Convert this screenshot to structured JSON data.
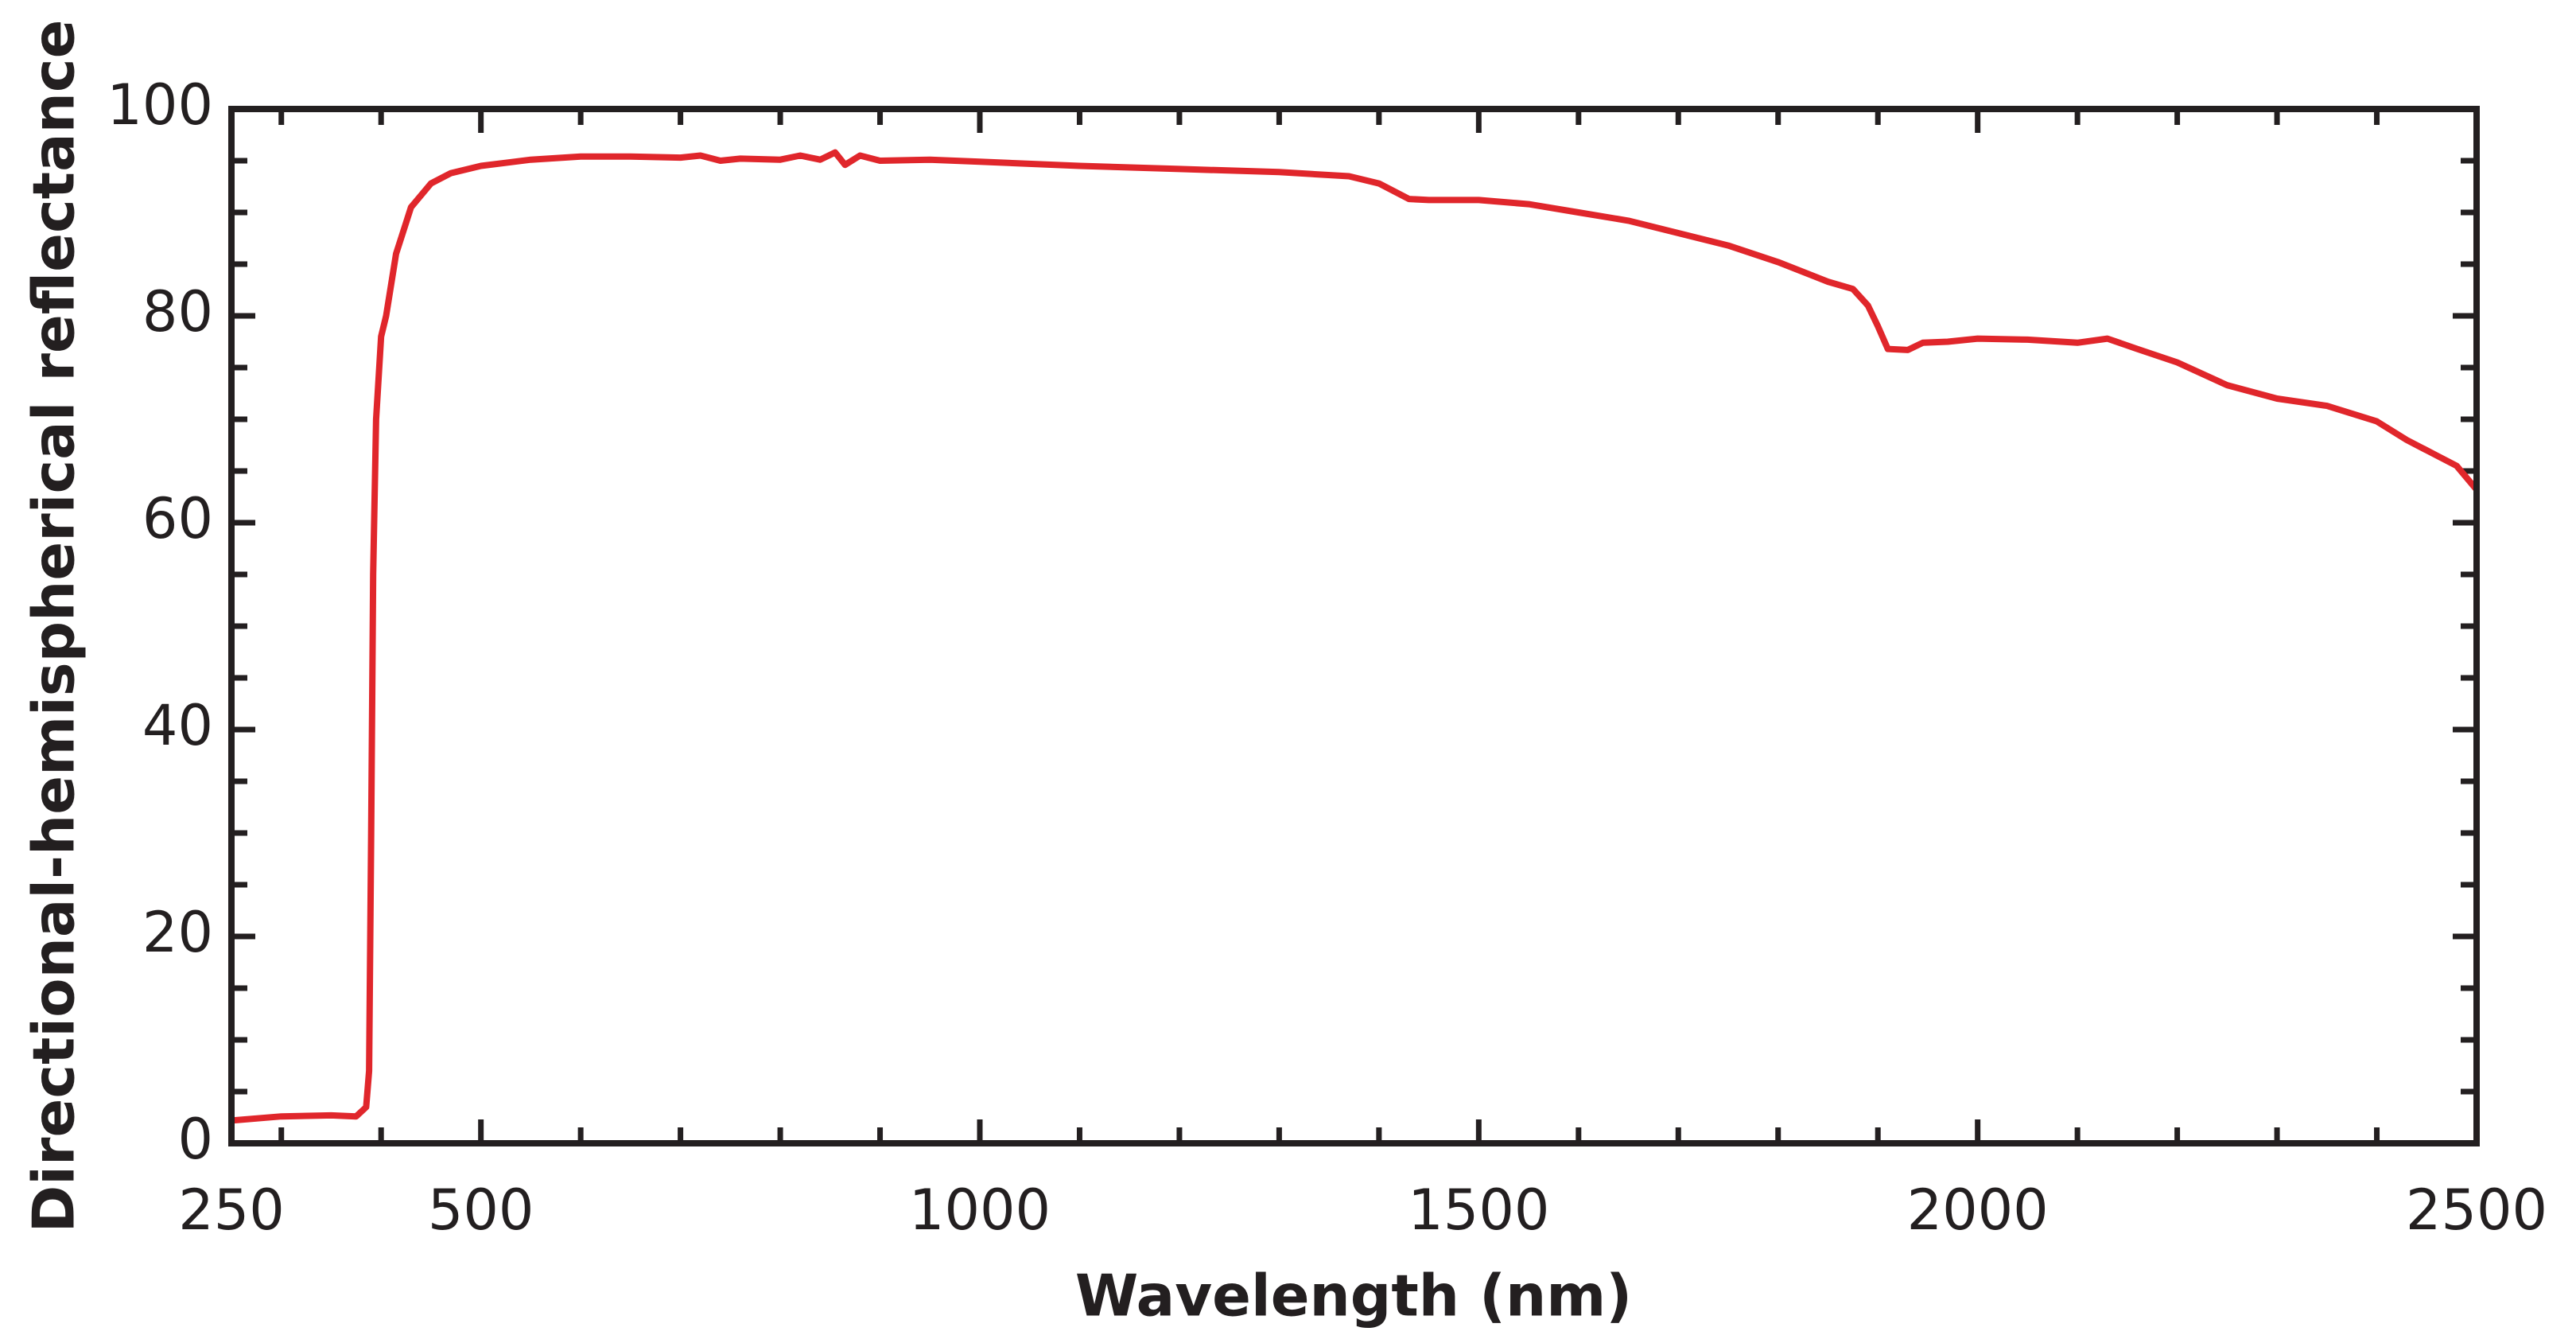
{
  "chart_data": {
    "type": "line",
    "xlabel": "Wavelength (nm)",
    "ylabel": "Directional-hemispherical reflectance",
    "xlim": [
      250,
      2500
    ],
    "ylim": [
      0,
      100
    ],
    "xticks": [
      250,
      500,
      1000,
      1500,
      2000,
      2500
    ],
    "yticks": [
      0,
      20,
      40,
      60,
      80,
      100
    ],
    "xminorticks": [
      300,
      400,
      600,
      700,
      800,
      900,
      1100,
      1200,
      1300,
      1400,
      1600,
      1700,
      1800,
      1900,
      2100,
      2200,
      2300,
      2400
    ],
    "yminorticks": [
      5,
      10,
      15,
      25,
      30,
      35,
      45,
      50,
      55,
      65,
      70,
      75,
      85,
      90,
      95
    ],
    "grid": false,
    "series": [
      {
        "name": "Directional-hemispherical reflectance",
        "color": "#e0262b",
        "x": [
          250,
          300,
          350,
          375,
          385,
          388,
          390,
          392,
          395,
          400,
          405,
          415,
          430,
          450,
          470,
          500,
          550,
          600,
          650,
          700,
          720,
          740,
          760,
          800,
          820,
          840,
          855,
          865,
          880,
          900,
          950,
          1000,
          1100,
          1200,
          1300,
          1370,
          1400,
          1430,
          1450,
          1500,
          1550,
          1600,
          1650,
          1700,
          1750,
          1800,
          1850,
          1875,
          1890,
          1900,
          1910,
          1930,
          1945,
          1970,
          2000,
          2050,
          2100,
          2130,
          2160,
          2200,
          2250,
          2300,
          2350,
          2400,
          2430,
          2460,
          2480,
          2500
        ],
        "values": [
          2.2,
          2.6,
          2.7,
          2.6,
          3.5,
          7,
          30,
          55,
          70,
          78,
          80,
          86,
          90.5,
          92.8,
          93.8,
          94.5,
          95.1,
          95.4,
          95.4,
          95.3,
          95.5,
          95,
          95.2,
          95.1,
          95.5,
          95.1,
          95.8,
          94.6,
          95.5,
          95,
          95.1,
          94.9,
          94.5,
          94.2,
          93.9,
          93.5,
          92.8,
          91.3,
          91.2,
          91.2,
          90.8,
          90.0,
          89.2,
          88.0,
          86.8,
          85.2,
          83.3,
          82.6,
          81,
          79,
          76.8,
          76.7,
          77.4,
          77.5,
          77.8,
          77.7,
          77.4,
          77.8,
          76.8,
          75.5,
          73.3,
          72.0,
          71.3,
          69.8,
          68.0,
          66.5,
          65.5,
          63.2
        ]
      }
    ]
  }
}
